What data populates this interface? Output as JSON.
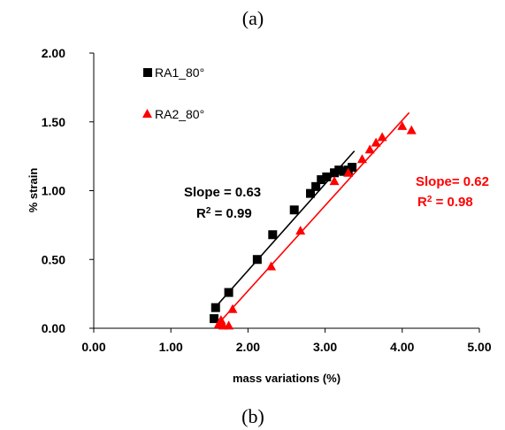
{
  "captions": {
    "top": "(a)",
    "bottom": "(b)"
  },
  "chart_data": {
    "type": "scatter",
    "xlabel": "mass variations  (%)",
    "ylabel": "% strain",
    "xlim": [
      0,
      5
    ],
    "ylim": [
      0,
      2
    ],
    "x_ticks": [
      "0.00",
      "1.00",
      "2.00",
      "3.00",
      "4.00",
      "5.00"
    ],
    "y_ticks": [
      "0.00",
      "0.50",
      "1.00",
      "1.50",
      "2.00"
    ],
    "grid": false,
    "legend_position": "top-left",
    "series": [
      {
        "name": "RA1_80°",
        "marker": "square",
        "color": "#000000",
        "points": [
          [
            1.56,
            0.07
          ],
          [
            1.58,
            0.15
          ],
          [
            1.75,
            0.26
          ],
          [
            2.12,
            0.5
          ],
          [
            2.32,
            0.68
          ],
          [
            2.6,
            0.86
          ],
          [
            2.81,
            0.98
          ],
          [
            2.88,
            1.03
          ],
          [
            2.95,
            1.08
          ],
          [
            3.02,
            1.1
          ],
          [
            3.12,
            1.13
          ],
          [
            3.18,
            1.15
          ],
          [
            3.24,
            1.14
          ],
          [
            3.3,
            1.15
          ],
          [
            3.35,
            1.17
          ]
        ],
        "fit": {
          "x": [
            1.57,
            3.38
          ],
          "slope": 0.63
        },
        "annotation": {
          "slope_text": "Slope = 0.63",
          "r2_prefix": "R",
          "r2_sup": "2",
          "r2_value": " = 0.99"
        }
      },
      {
        "name": "RA2_80°",
        "marker": "triangle",
        "color": "#ff0000",
        "points": [
          [
            1.62,
            0.03
          ],
          [
            1.65,
            0.06
          ],
          [
            1.68,
            0.02
          ],
          [
            1.75,
            0.02
          ],
          [
            1.8,
            0.14
          ],
          [
            2.3,
            0.45
          ],
          [
            2.68,
            0.71
          ],
          [
            3.12,
            1.07
          ],
          [
            3.3,
            1.13
          ],
          [
            3.48,
            1.23
          ],
          [
            3.58,
            1.3
          ],
          [
            3.66,
            1.35
          ],
          [
            3.74,
            1.39
          ],
          [
            4.0,
            1.47
          ],
          [
            4.12,
            1.44
          ]
        ],
        "fit": {
          "x": [
            1.62,
            4.09
          ],
          "slope": 0.62
        },
        "annotation": {
          "slope_text": "Slope= 0.62",
          "r2_prefix": "R",
          "r2_sup": "2",
          "r2_value": " = 0.98"
        }
      }
    ]
  }
}
